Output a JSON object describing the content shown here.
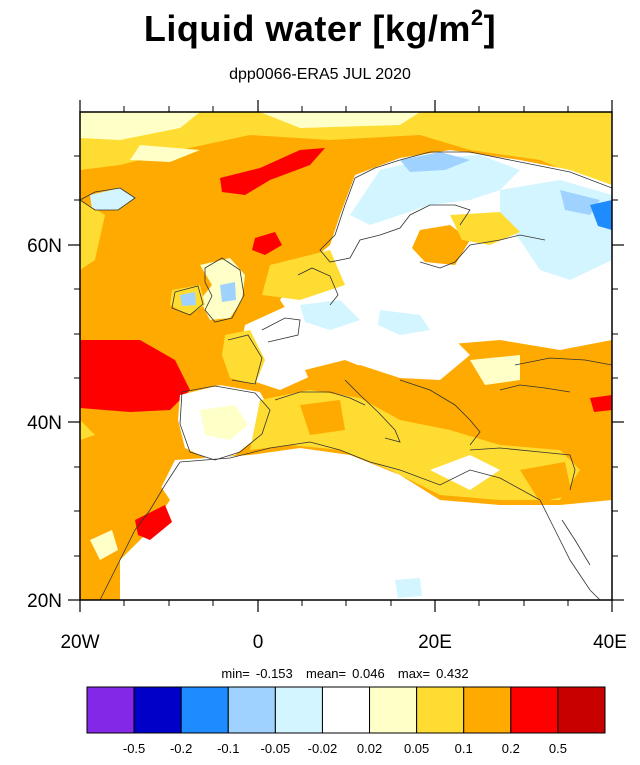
{
  "title": {
    "main": "Liquid water  [kg/m",
    "sup": "2",
    "close": "]"
  },
  "subtitle": "dpp0066-ERA5 JUL 2020",
  "axes": {
    "x_ticks": [
      "20W",
      "0",
      "20E",
      "40E"
    ],
    "y_ticks": [
      "60N",
      "40N",
      "20N"
    ]
  },
  "stats": {
    "min_label": "min=",
    "min_value": "-0.153",
    "mean_label": "mean=",
    "mean_value": "0.046",
    "max_label": "max=",
    "max_value": "0.432"
  },
  "colorbar": {
    "colors": [
      "#8228e6",
      "#0000c8",
      "#1e8cff",
      "#a0d2ff",
      "#d2f5ff",
      "#ffffff",
      "#ffffc8",
      "#ffdc32",
      "#ffaa00",
      "#ff0000",
      "#c80000"
    ],
    "labels": [
      "-0.5",
      "-0.2",
      "-0.1",
      "-0.05",
      "-0.02",
      "0.02",
      "0.05",
      "0.1",
      "0.2",
      "0.5"
    ]
  }
}
